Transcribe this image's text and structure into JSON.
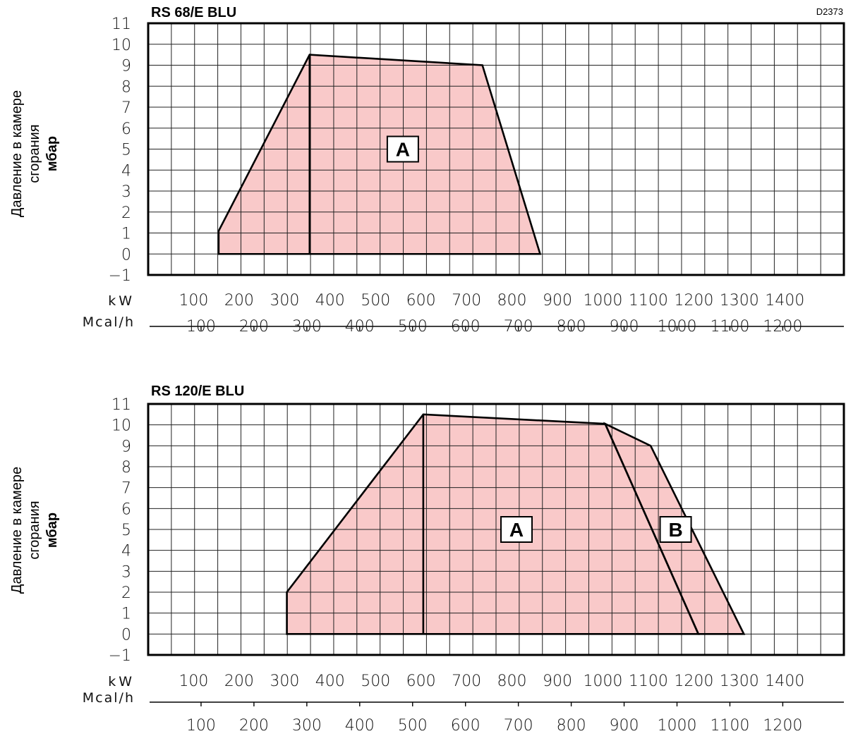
{
  "page": {
    "drawing_code": "D2373"
  },
  "chart_data": [
    {
      "type": "area",
      "title": "RS 68/E BLU",
      "ylabel_lines": [
        "Давление в камере",
        "сгорания",
        "мбар"
      ],
      "x_unit_primary": "kW",
      "x_unit_secondary": "Mcal/h",
      "ylim": [
        -1,
        11
      ],
      "xlim_kw": [
        0,
        1530
      ],
      "y_ticks": [
        "11",
        "10",
        "9",
        "8",
        "7",
        "6",
        "5",
        "4",
        "3",
        "2",
        "1",
        "0",
        "−1"
      ],
      "y_tick_values": [
        11,
        10,
        9,
        8,
        7,
        6,
        5,
        4,
        3,
        2,
        1,
        0,
        -1
      ],
      "kw_ticks": [
        100,
        200,
        300,
        400,
        500,
        600,
        700,
        800,
        900,
        1000,
        1100,
        1200,
        1300,
        1400
      ],
      "mcal_ticks": [
        100,
        200,
        300,
        400,
        500,
        600,
        700,
        800,
        900,
        1000,
        1100,
        1200
      ],
      "grid": true,
      "regions": [
        {
          "label": "A",
          "points": [
            [
              155,
              0
            ],
            [
              155,
              1.1
            ],
            [
              355,
              9.5
            ],
            [
              735,
              9
            ],
            [
              862,
              0
            ]
          ],
          "divider": [
            [
              355,
              0
            ],
            [
              355,
              9.5
            ]
          ],
          "label_at": [
            560,
            5
          ]
        }
      ]
    },
    {
      "type": "area",
      "title": "RS 120/E BLU",
      "ylabel_lines": [
        "Давление в камере",
        "сгорания",
        "мбар"
      ],
      "x_unit_primary": "kW",
      "x_unit_secondary": "Mcal/h",
      "ylim": [
        -1,
        11
      ],
      "xlim_kw": [
        0,
        1530
      ],
      "y_ticks": [
        "11",
        "10",
        "9",
        "8",
        "7",
        "6",
        "5",
        "4",
        "3",
        "2",
        "1",
        "0",
        "−1"
      ],
      "y_tick_values": [
        11,
        10,
        9,
        8,
        7,
        6,
        5,
        4,
        3,
        2,
        1,
        0,
        -1
      ],
      "kw_ticks": [
        100,
        200,
        300,
        400,
        500,
        600,
        700,
        800,
        900,
        1000,
        1100,
        1200,
        1300,
        1400
      ],
      "mcal_ticks": [
        100,
        200,
        300,
        400,
        500,
        600,
        700,
        800,
        900,
        1000,
        1100,
        1200
      ],
      "grid": true,
      "regions": [
        {
          "label": "A",
          "points": [
            [
              305,
              0
            ],
            [
              305,
              2
            ],
            [
              605,
              10.5
            ],
            [
              1005,
              10.05
            ],
            [
              1210,
              0
            ]
          ],
          "divider": [
            [
              605,
              0
            ],
            [
              605,
              10.5
            ]
          ],
          "label_at": [
            810,
            5
          ]
        },
        {
          "label": "B",
          "points": [
            [
              1005,
              10.05
            ],
            [
              1105,
              9
            ],
            [
              1310,
              0
            ],
            [
              1210,
              0
            ]
          ],
          "label_at": [
            1160,
            5
          ]
        }
      ]
    }
  ]
}
